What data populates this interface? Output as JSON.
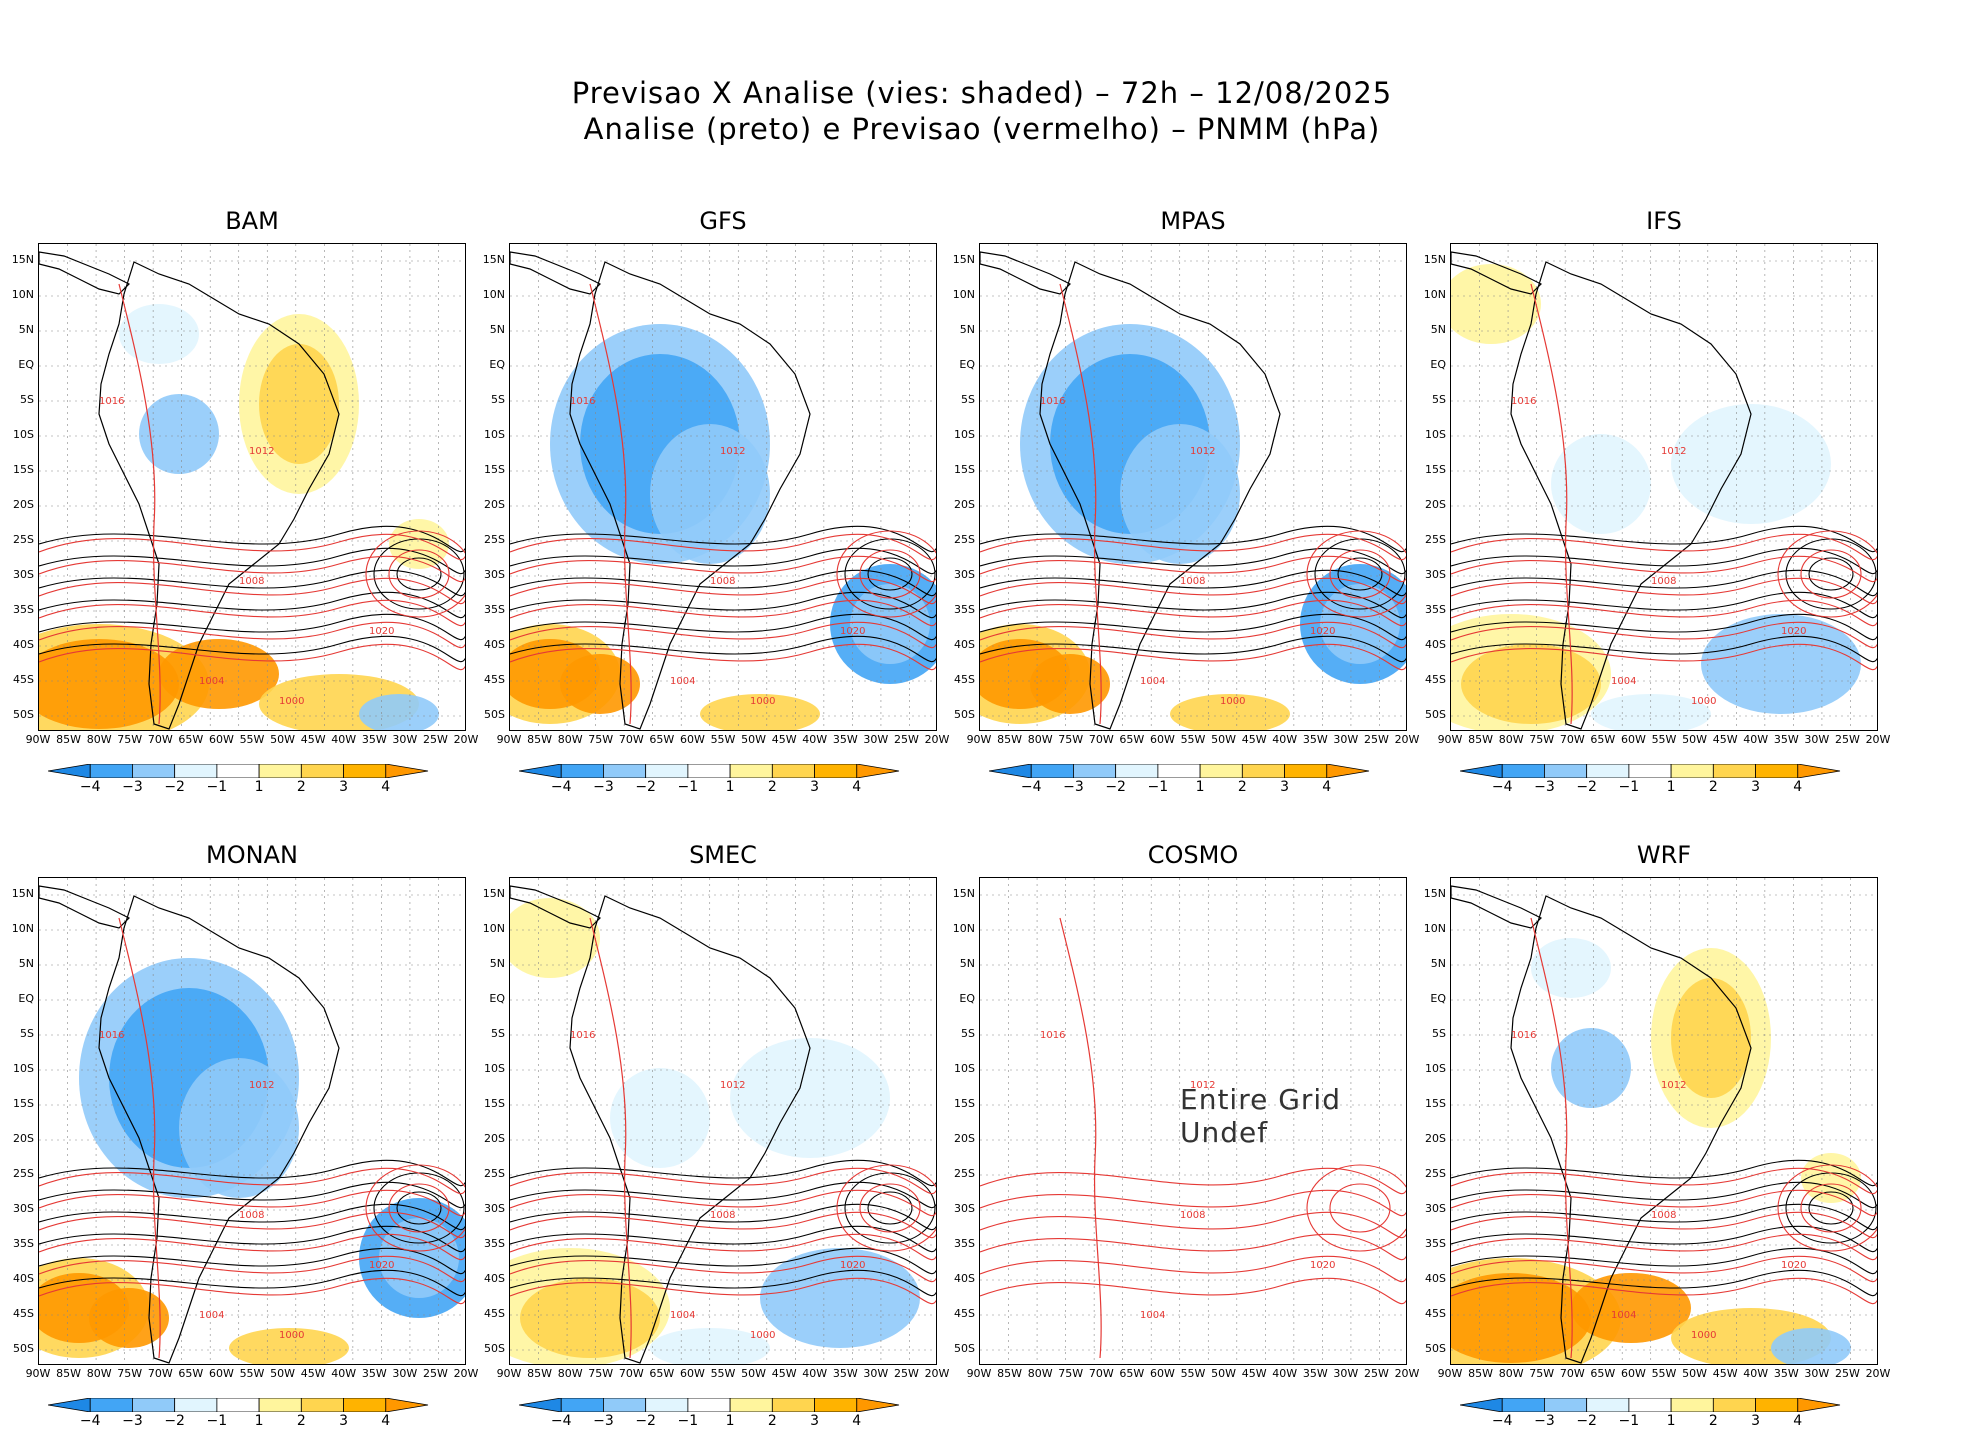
{
  "header": {
    "title_line1": "Previsao X Analise (vies: shaded) – 72h – 12/08/2025",
    "title_line2": "Analise (preto) e Previsao (vermelho) – PNMM (hPa)"
  },
  "axes": {
    "lat_labels": [
      "15N",
      "10N",
      "5N",
      "EQ",
      "5S",
      "10S",
      "15S",
      "20S",
      "25S",
      "30S",
      "35S",
      "40S",
      "45S",
      "50S"
    ],
    "lon_labels": [
      "90W",
      "85W",
      "80W",
      "75W",
      "70W",
      "65W",
      "60W",
      "55W",
      "50W",
      "45W",
      "40W",
      "35W",
      "30W",
      "25W",
      "20W"
    ]
  },
  "colorbar": {
    "labels": [
      "−4",
      "−3",
      "−2",
      "−1",
      "1",
      "2",
      "3",
      "4"
    ],
    "colors": [
      "#1e88e5",
      "#42a5f5",
      "#90caf9",
      "#e1f5fe",
      "#ffffff",
      "#fff59d",
      "#ffd54f",
      "#ffb300",
      "#ff9800"
    ]
  },
  "colors": {
    "analysis": "#000000",
    "forecast": "#e53935",
    "grid": "#888888"
  },
  "panels": [
    {
      "name": "BAM",
      "contour_labels": [
        "1012",
        "1016",
        "1020",
        "1008",
        "1004",
        "1000"
      ],
      "bias": "mixed"
    },
    {
      "name": "GFS",
      "contour_labels": [
        "1012",
        "1016",
        "1020",
        "1008",
        "1004",
        "1000"
      ],
      "bias": "blue"
    },
    {
      "name": "MPAS",
      "contour_labels": [
        "1012",
        "1016",
        "1020",
        "1008",
        "1004",
        "1000"
      ],
      "bias": "blue"
    },
    {
      "name": "IFS",
      "contour_labels": [
        "1012",
        "1016",
        "1020",
        "1008",
        "1004",
        "1000"
      ],
      "bias": "light"
    },
    {
      "name": "MONAN",
      "contour_labels": [
        "1012",
        "1016",
        "1020",
        "1008",
        "1004",
        "1000"
      ],
      "bias": "blue"
    },
    {
      "name": "SMEC",
      "contour_labels": [
        "1012",
        "1016",
        "1020",
        "1008",
        "1004",
        "1000"
      ],
      "bias": "light"
    },
    {
      "name": "COSMO",
      "contour_labels": [
        "1012",
        "1016",
        "1020",
        "1008",
        "1004"
      ],
      "bias": "none",
      "undef_text": "Entire Grid Undef"
    },
    {
      "name": "WRF",
      "contour_labels": [
        "1012",
        "1016",
        "1020",
        "1008",
        "1004",
        "1000"
      ],
      "bias": "mixed"
    }
  ]
}
